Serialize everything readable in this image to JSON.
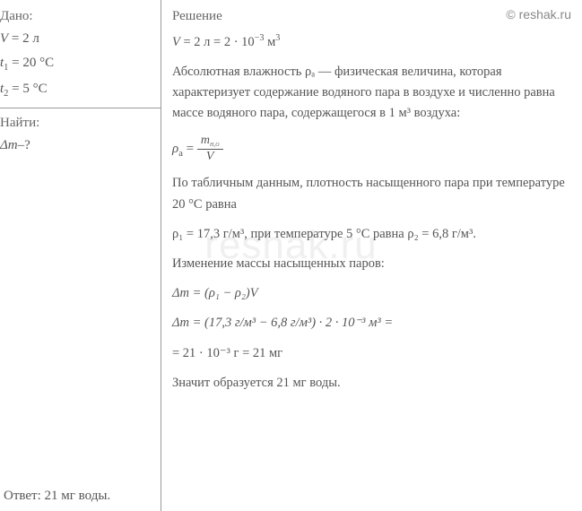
{
  "watermark": "© reshak.ru",
  "bg_watermark": "reshak.ru",
  "given": {
    "header": "Дано:",
    "items": [
      {
        "var": "V",
        "val": "2 л"
      },
      {
        "var": "t",
        "sub": "1",
        "val": "20 °C"
      },
      {
        "var": "t",
        "sub": "2",
        "val": "5 °C"
      }
    ]
  },
  "find": {
    "header": "Найти:",
    "items": [
      {
        "var": "Δm",
        "suffix": "–?"
      }
    ]
  },
  "solution": {
    "header": "Решение",
    "line1_pre": "V",
    "line1_vals": " = 2 л = 2 · 10",
    "line1_exp": "−3",
    "line1_unit": " м",
    "line1_unit_exp": "3",
    "para1": "Абсолютная влажность ρₐ — физическая величина, которая характеризует содержание водяного пара в воздухе и численно равна массе водяного пара, содержащегося в 1 м³ воздуха:",
    "formula_lhs": "ρ",
    "formula_lhs_sub": "а",
    "formula_num_var": "m",
    "formula_num_sub": "H₂O",
    "formula_den": "V",
    "para2": "По табличным данным, плотность насыщенного пара при температуре 20 °C равна",
    "rho1_text": "ρ₁ = 17,3 г/м³, при температуре 5 °C равна ρ₂ = 6,8 г/м³.",
    "para3": "Изменение массы насыщенных паров:",
    "formula2": "Δm = (ρ₁ − ρ₂)V",
    "calc_line": "Δm = (17,3 г/м³ − 6,8 г/м³) · 2 · 10⁻³ м³ =",
    "calc_result": "= 21 · 10⁻³ г = 21 мг",
    "conclusion": "Значит образуется 21 мг воды."
  },
  "answer": {
    "label": "Ответ:",
    "text": " 21 мг воды."
  },
  "colors": {
    "text": "#555555",
    "border": "#999999",
    "background": "#ffffff",
    "watermark_bg": "#f0f0f0"
  }
}
